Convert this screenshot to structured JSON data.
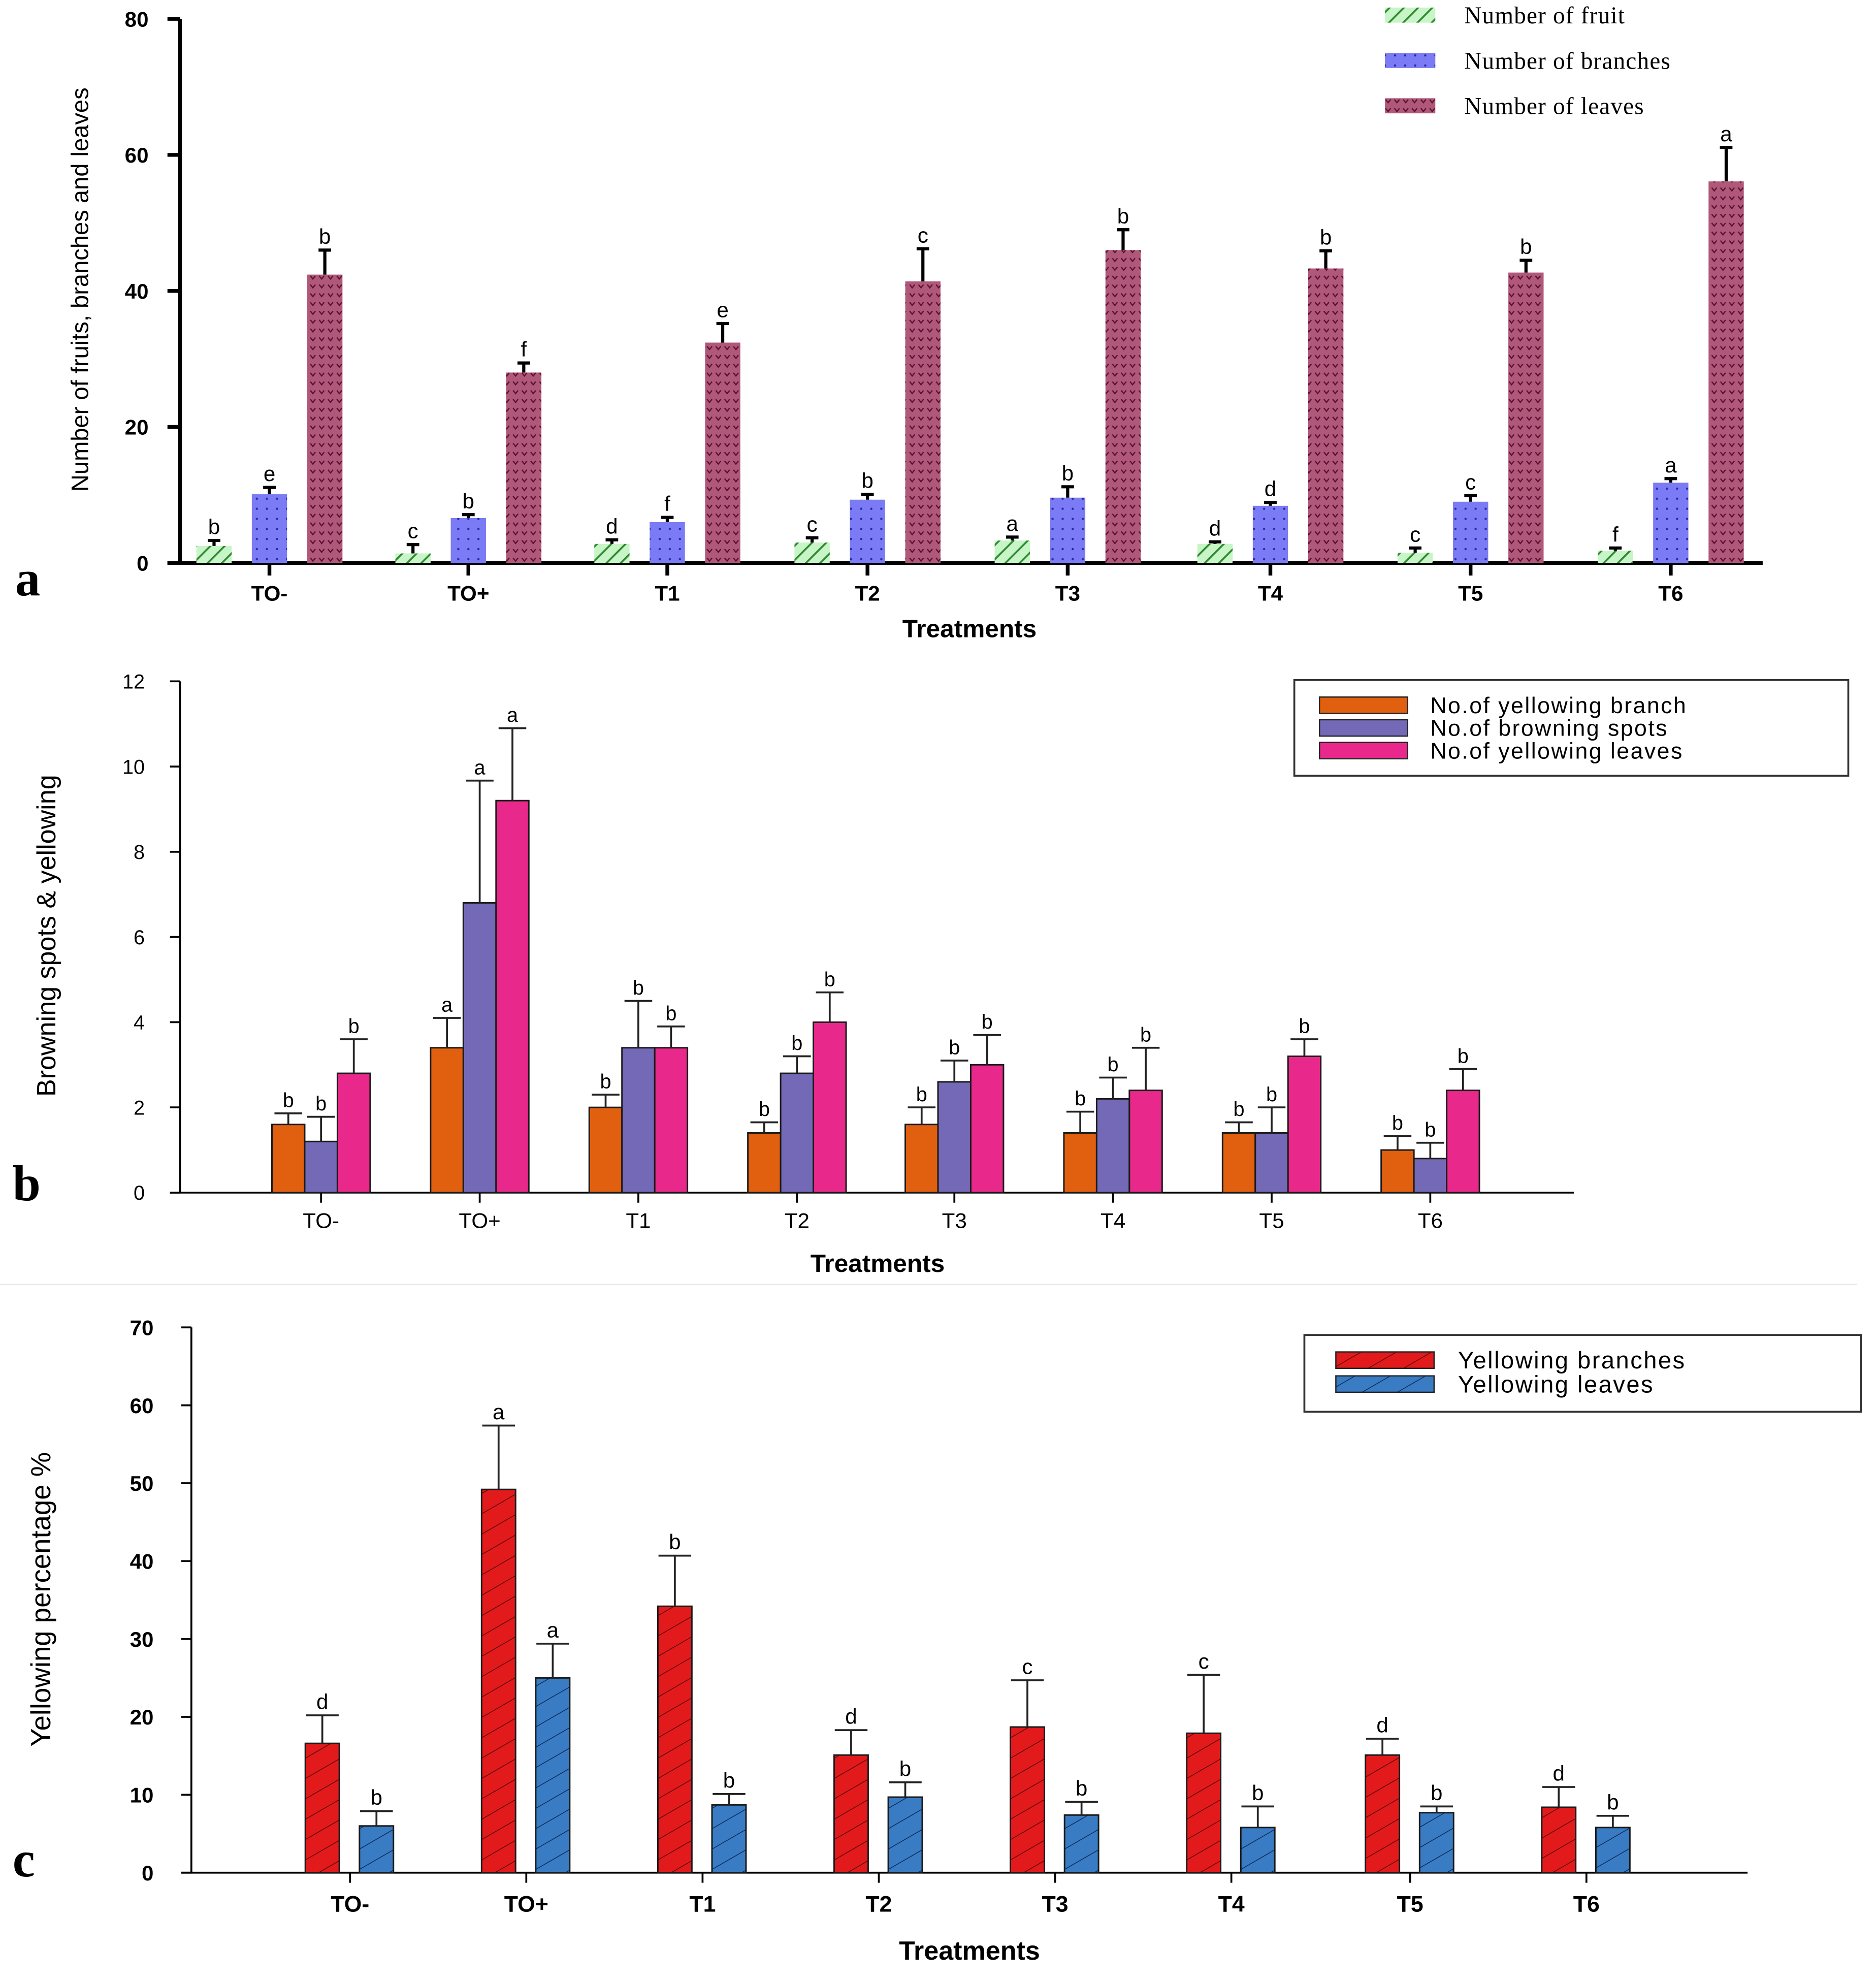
{
  "chart_data": [
    {
      "panel": "a",
      "type": "bar",
      "title": "",
      "xlabel": "Treatments",
      "ylabel": "Number of fruits, branches and leaves",
      "ylim": [
        0,
        80
      ],
      "yticks": [
        0,
        20,
        40,
        60,
        80
      ],
      "grid": false,
      "legend_position": "top-right",
      "categories": [
        "TO-",
        "TO+",
        "T1",
        "T2",
        "T3",
        "T4",
        "T5",
        "T6"
      ],
      "series": [
        {
          "name": "Number of fruit",
          "color": "#b8f0b8",
          "pattern": "diagonal-hatch",
          "values": [
            2.5,
            1.4,
            2.8,
            3.0,
            3.3,
            2.8,
            1.5,
            1.8
          ],
          "error_upper": [
            3.3,
            2.7,
            3.4,
            3.7,
            3.8,
            3.1,
            2.2,
            2.2
          ],
          "letters": [
            "b",
            "c",
            "d",
            "c",
            "a",
            "d",
            "c",
            "f"
          ]
        },
        {
          "name": "Number of branches",
          "color": "#7b7bf5",
          "pattern": "dots",
          "values": [
            10.1,
            6.6,
            6.0,
            9.3,
            9.6,
            8.4,
            9.0,
            11.8
          ],
          "error_upper": [
            11.1,
            7.1,
            6.7,
            10.1,
            11.2,
            8.9,
            9.9,
            12.4
          ],
          "letters": [
            "e",
            "b",
            "f",
            "b",
            "b",
            "d",
            "c",
            "a"
          ]
        },
        {
          "name": "Number of leaves",
          "color": "#b0587a",
          "pattern": "chevrons",
          "values": [
            42.4,
            28.0,
            32.4,
            41.4,
            46.0,
            43.3,
            42.7,
            56.1
          ],
          "error_upper": [
            46.0,
            29.4,
            35.2,
            46.2,
            49.0,
            45.9,
            44.5,
            61.1
          ],
          "letters": [
            "b",
            "f",
            "e",
            "c",
            "b",
            "b",
            "b",
            "a"
          ]
        }
      ]
    },
    {
      "panel": "b",
      "type": "bar",
      "title": "",
      "xlabel": "Treatments",
      "ylabel": "Browning spots & yellowing",
      "ylim": [
        0,
        12
      ],
      "yticks": [
        0,
        2,
        4,
        6,
        8,
        10,
        12
      ],
      "grid": false,
      "legend_position": "top-right",
      "categories": [
        "TO-",
        "TO+",
        "T1",
        "T2",
        "T3",
        "T4",
        "T5",
        "T6"
      ],
      "series": [
        {
          "name": "No.of yellowing branch",
          "color": "#e06010",
          "values": [
            1.6,
            3.4,
            2.0,
            1.4,
            1.6,
            1.4,
            1.4,
            1.0
          ],
          "error_upper": [
            1.86,
            4.1,
            2.3,
            1.65,
            2.0,
            1.9,
            1.65,
            1.33
          ],
          "letters": [
            "b",
            "a",
            "b",
            "b",
            "b",
            "b",
            "b",
            "b"
          ]
        },
        {
          "name": "No.of browning spots",
          "color": "#7469b6",
          "values": [
            1.2,
            6.8,
            3.4,
            2.8,
            2.6,
            2.2,
            1.4,
            0.8
          ],
          "error_upper": [
            1.78,
            9.67,
            4.5,
            3.2,
            3.1,
            2.7,
            2.0,
            1.17
          ],
          "letters": [
            "b",
            "a",
            "b",
            "b",
            "b",
            "b",
            "b",
            "b"
          ]
        },
        {
          "name": "No.of yellowing leaves",
          "color": "#e8288a",
          "values": [
            2.8,
            9.2,
            3.4,
            4.0,
            3.0,
            2.4,
            3.2,
            2.4
          ],
          "error_upper": [
            3.6,
            10.9,
            3.9,
            4.7,
            3.7,
            3.4,
            3.6,
            2.9
          ],
          "letters": [
            "b",
            "a",
            "b",
            "b",
            "b",
            "b",
            "b",
            "b"
          ]
        }
      ]
    },
    {
      "panel": "c",
      "type": "bar",
      "title": "",
      "xlabel": "Treatments",
      "ylabel": "Yellowing percentage %",
      "ylim": [
        0,
        70
      ],
      "yticks": [
        0,
        10,
        20,
        30,
        40,
        50,
        60,
        70
      ],
      "grid": false,
      "legend_position": "top-right",
      "categories": [
        "TO-",
        "TO+",
        "T1",
        "T2",
        "T3",
        "T4",
        "T5",
        "T6"
      ],
      "series": [
        {
          "name": "Yellowing branches",
          "color": "#e31a1c",
          "pattern": "diagonal-hatch",
          "values": [
            16.6,
            49.2,
            34.2,
            15.1,
            18.7,
            17.9,
            15.1,
            8.4
          ],
          "error_upper": [
            20.2,
            57.4,
            40.7,
            18.3,
            24.7,
            25.4,
            17.2,
            11.0
          ],
          "letters": [
            "d",
            "a",
            "b",
            "d",
            "c",
            "c",
            "d",
            "d"
          ]
        },
        {
          "name": "Yellowing leaves",
          "color": "#3a7cc4",
          "pattern": "diagonal-hatch",
          "values": [
            6.0,
            25.0,
            8.7,
            9.7,
            7.4,
            5.8,
            7.7,
            5.8
          ],
          "error_upper": [
            7.9,
            29.4,
            10.1,
            11.6,
            9.1,
            8.5,
            8.5,
            7.3
          ],
          "letters": [
            "b",
            "a",
            "b",
            "b",
            "b",
            "b",
            "b",
            "b"
          ]
        }
      ]
    }
  ],
  "panel_labels": [
    "a",
    "b",
    "c"
  ]
}
